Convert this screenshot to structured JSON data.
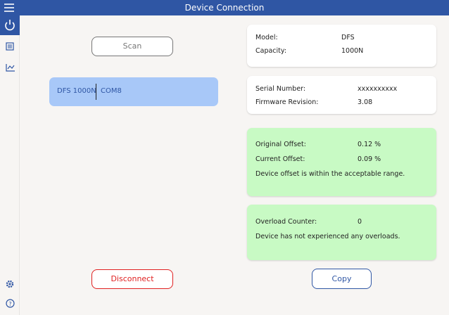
{
  "header": {
    "title": "Device Connection"
  },
  "scan_button": "Scan",
  "devices": [
    {
      "name": "DFS 1000N",
      "port": "COM8"
    }
  ],
  "cards": [
    {
      "rows": [
        [
          "Model:",
          "DFS"
        ],
        [
          "Capacity:",
          "1000N"
        ]
      ]
    },
    {
      "rows": [
        [
          "Serial Number:",
          "xxxxxxxxxx"
        ],
        [
          "Firmware Revision:",
          "3.08"
        ]
      ]
    },
    {
      "rows": [
        [
          "Original Offset:",
          "0.12 %"
        ],
        [
          "Current Offset:",
          "0.09 %"
        ]
      ],
      "message": "Device offset is within the acceptable range."
    },
    {
      "rows": [
        [
          "Overload Counter:",
          "0"
        ]
      ],
      "message": "Device has not experienced any overloads."
    }
  ],
  "disconnect_button": "Disconnect",
  "copy_button": "Copy"
}
